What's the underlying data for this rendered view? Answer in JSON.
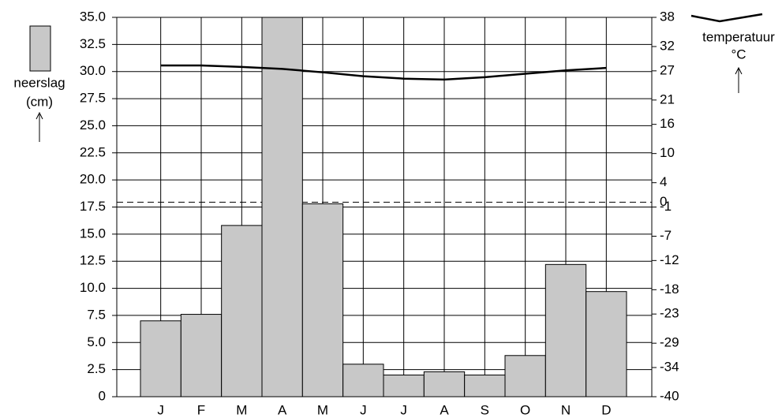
{
  "chart_data": {
    "type": "bar",
    "categories": [
      "J",
      "F",
      "M",
      "A",
      "M",
      "J",
      "J",
      "A",
      "S",
      "O",
      "N",
      "D"
    ],
    "series": [
      {
        "name": "neerslag",
        "type": "bar",
        "color": "#c8c8c8",
        "values": [
          7.0,
          7.6,
          15.8,
          35,
          17.8,
          3.0,
          2.0,
          2.3,
          2.0,
          3.8,
          12.2,
          9.7
        ]
      },
      {
        "name": "temperatuur",
        "type": "line",
        "axis": "y2",
        "color": "#000000",
        "values": [
          28.1,
          28.1,
          27.8,
          27.4,
          26.7,
          25.9,
          25.4,
          25.2,
          25.7,
          26.4,
          27.1,
          27.6
        ]
      }
    ],
    "ylabel_unit": "(cm)",
    "y2label_unit": "°C",
    "ylim": [
      0,
      35
    ],
    "yticks": [
      0,
      2.5,
      {
        "value": 5,
        "label": "5.0"
      },
      7.5,
      {
        "value": 10,
        "label": "10.0"
      },
      12.5,
      {
        "value": 15,
        "label": "15.0"
      },
      17.5,
      {
        "value": 20,
        "label": "20.0"
      },
      22.5,
      {
        "value": 25,
        "label": "25.0"
      },
      27.5,
      {
        "value": 30,
        "label": "30.0"
      },
      32.5,
      {
        "value": 35,
        "label": "35.0"
      }
    ],
    "y2lim": [
      -40,
      38
    ],
    "y2ticks": [
      -40,
      -34,
      -29,
      -23,
      -18,
      -12,
      -7,
      -1,
      4,
      10,
      16,
      21,
      27,
      32,
      38
    ],
    "y2_refline": 0,
    "grid": true
  }
}
